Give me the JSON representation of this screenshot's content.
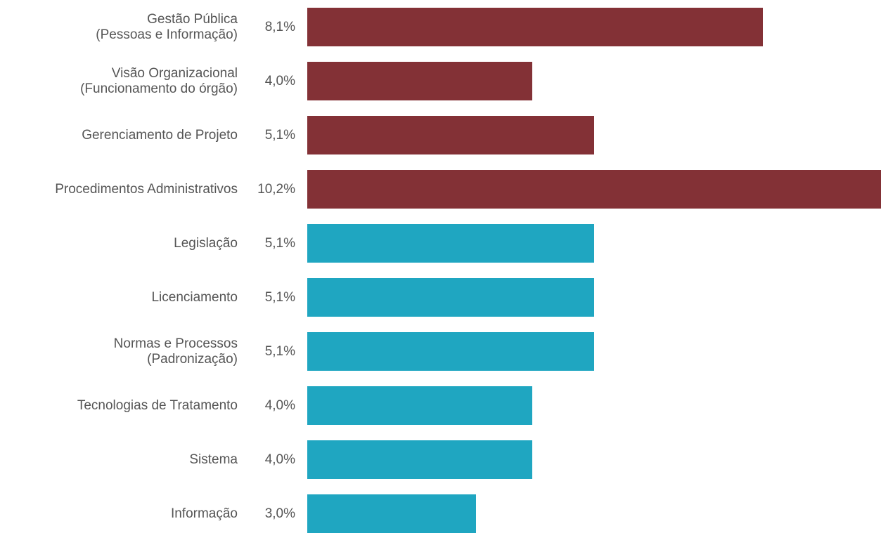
{
  "chart_data": {
    "type": "bar",
    "orientation": "horizontal",
    "categories": [
      [
        "Gestão Pública",
        "(Pessoas e Informação)"
      ],
      [
        "Visão Organizacional",
        "(Funcionamento do órgão)"
      ],
      [
        "Gerenciamento de Projeto"
      ],
      [
        "Procedimentos Administrativos"
      ],
      [
        "Legislação"
      ],
      [
        "Licenciamento"
      ],
      [
        "Normas e Processos",
        "(Padronização)"
      ],
      [
        "Tecnologias de Tratamento"
      ],
      [
        "Sistema"
      ],
      [
        "Informação"
      ]
    ],
    "values": [
      8.1,
      4.0,
      5.1,
      10.2,
      5.1,
      5.1,
      5.1,
      4.0,
      4.0,
      3.0
    ],
    "value_labels": [
      "8,1%",
      "4,0%",
      "5,1%",
      "10,2%",
      "5,1%",
      "5,1%",
      "5,1%",
      "4,0%",
      "4,0%",
      "3,0%"
    ],
    "bar_colors": [
      "#833136",
      "#833136",
      "#833136",
      "#833136",
      "#1fa6c1",
      "#1fa6c1",
      "#1fa6c1",
      "#1fa6c1",
      "#1fa6c1",
      "#1fa6c1"
    ],
    "xlim": [
      0,
      10.2
    ],
    "title": "",
    "xlabel": "",
    "ylabel": "",
    "grid": false,
    "legend": "none"
  }
}
